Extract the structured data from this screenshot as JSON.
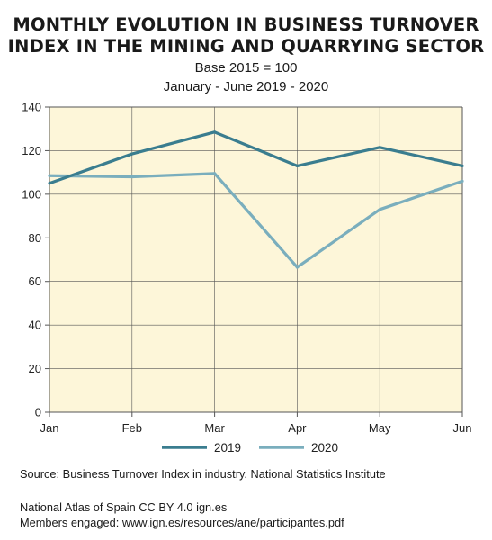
{
  "header": {
    "title_line1": "MONTHLY EVOLUTION IN BUSINESS TURNOVER",
    "title_line2": "INDEX IN THE MINING AND QUARRYING SECTOR",
    "subtitle_line1": "Base 2015 = 100",
    "subtitle_line2": "January - June 2019 - 2020"
  },
  "footer": {
    "source": "Source: Business Turnover Index in industry. National Statistics Institute",
    "atlas": "National Atlas of Spain CC BY 4.0 ign.es",
    "members": "Members engaged: www.ign.es/resources/ane/participantes.pdf"
  },
  "colors": {
    "plot_bg": "#fdf6d9",
    "series_2019": "#3a7d8f",
    "series_2020": "#7aaebd",
    "axis": "#555555",
    "grid": "#555555"
  },
  "chart_data": {
    "type": "line",
    "categories": [
      "Jan",
      "Feb",
      "Mar",
      "Apr",
      "May",
      "Jun"
    ],
    "ylim": [
      0,
      140
    ],
    "yticks": [
      0,
      20,
      40,
      60,
      80,
      100,
      120,
      140
    ],
    "grid": true,
    "legend": "bottom",
    "series": [
      {
        "name": "2019",
        "values": [
          105,
          118.5,
          128.5,
          113,
          121.5,
          113
        ]
      },
      {
        "name": "2020",
        "values": [
          108.5,
          108,
          109.5,
          66.5,
          93,
          106
        ]
      }
    ]
  }
}
